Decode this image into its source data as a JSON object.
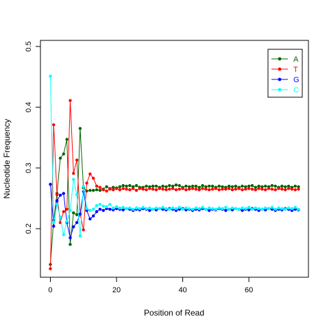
{
  "chart_data": {
    "type": "line",
    "title": "",
    "xlabel": "Position of Read",
    "ylabel": "Nucleotide Frequency",
    "xlim": [
      -3,
      78
    ],
    "ylim": [
      0.12,
      0.51
    ],
    "xticks": [
      0,
      20,
      40,
      60
    ],
    "yticks": [
      0.2,
      0.3,
      0.4,
      0.5
    ],
    "legend_position": "top-right",
    "grid": false,
    "x": [
      0,
      1,
      2,
      3,
      4,
      5,
      6,
      7,
      8,
      9,
      10,
      11,
      12,
      13,
      14,
      15,
      16,
      17,
      18,
      19,
      20,
      21,
      22,
      23,
      24,
      25,
      26,
      27,
      28,
      29,
      30,
      31,
      32,
      33,
      34,
      35,
      36,
      37,
      38,
      39,
      40,
      41,
      42,
      43,
      44,
      45,
      46,
      47,
      48,
      49,
      50,
      51,
      52,
      53,
      54,
      55,
      56,
      57,
      58,
      59,
      60,
      61,
      62,
      63,
      64,
      65,
      66,
      67,
      68,
      69,
      70,
      71,
      72,
      73,
      74,
      75
    ],
    "series": [
      {
        "name": "A",
        "color": "#006400",
        "values": [
          0.141,
          0.214,
          0.258,
          0.316,
          0.323,
          0.347,
          0.174,
          0.226,
          0.223,
          0.365,
          0.267,
          0.262,
          0.263,
          0.263,
          0.264,
          0.263,
          0.265,
          0.269,
          0.266,
          0.268,
          0.267,
          0.269,
          0.271,
          0.27,
          0.271,
          0.269,
          0.271,
          0.268,
          0.268,
          0.27,
          0.269,
          0.27,
          0.27,
          0.268,
          0.27,
          0.269,
          0.271,
          0.27,
          0.272,
          0.271,
          0.268,
          0.27,
          0.269,
          0.27,
          0.27,
          0.268,
          0.271,
          0.269,
          0.27,
          0.27,
          0.268,
          0.27,
          0.269,
          0.268,
          0.27,
          0.269,
          0.27,
          0.268,
          0.27,
          0.269,
          0.27,
          0.271,
          0.268,
          0.27,
          0.269,
          0.27,
          0.269,
          0.271,
          0.27,
          0.268,
          0.27,
          0.269,
          0.27,
          0.268,
          0.27,
          0.269
        ]
      },
      {
        "name": "T",
        "color": "#ff0000",
        "values": [
          0.134,
          0.371,
          0.256,
          0.21,
          0.228,
          0.232,
          0.411,
          0.291,
          0.313,
          0.224,
          0.198,
          0.275,
          0.29,
          0.283,
          0.27,
          0.268,
          0.264,
          0.262,
          0.265,
          0.264,
          0.266,
          0.264,
          0.266,
          0.265,
          0.264,
          0.266,
          0.263,
          0.266,
          0.265,
          0.264,
          0.266,
          0.265,
          0.264,
          0.266,
          0.265,
          0.264,
          0.265,
          0.266,
          0.264,
          0.265,
          0.266,
          0.264,
          0.265,
          0.266,
          0.265,
          0.264,
          0.266,
          0.265,
          0.264,
          0.265,
          0.266,
          0.264,
          0.265,
          0.265,
          0.266,
          0.264,
          0.265,
          0.266,
          0.264,
          0.265,
          0.266,
          0.265,
          0.264,
          0.266,
          0.265,
          0.264,
          0.266,
          0.265,
          0.264,
          0.266,
          0.265,
          0.264,
          0.266,
          0.265,
          0.264,
          0.265
        ]
      },
      {
        "name": "G",
        "color": "#0000ff",
        "values": [
          0.273,
          0.204,
          0.246,
          0.255,
          0.258,
          0.21,
          0.185,
          0.203,
          0.21,
          0.224,
          0.261,
          0.23,
          0.216,
          0.221,
          0.228,
          0.232,
          0.23,
          0.233,
          0.232,
          0.231,
          0.233,
          0.232,
          0.231,
          0.233,
          0.232,
          0.23,
          0.232,
          0.231,
          0.233,
          0.232,
          0.23,
          0.232,
          0.231,
          0.233,
          0.232,
          0.231,
          0.233,
          0.232,
          0.23,
          0.232,
          0.233,
          0.231,
          0.232,
          0.23,
          0.232,
          0.231,
          0.233,
          0.232,
          0.23,
          0.232,
          0.231,
          0.233,
          0.232,
          0.23,
          0.232,
          0.231,
          0.233,
          0.232,
          0.23,
          0.232,
          0.231,
          0.233,
          0.232,
          0.23,
          0.232,
          0.231,
          0.233,
          0.232,
          0.23,
          0.232,
          0.231,
          0.233,
          0.232,
          0.23,
          0.232,
          0.231
        ]
      },
      {
        "name": "C",
        "color": "#00ffff",
        "values": [
          0.451,
          0.21,
          0.24,
          0.219,
          0.19,
          0.212,
          0.23,
          0.281,
          0.256,
          0.188,
          0.27,
          0.233,
          0.23,
          0.232,
          0.238,
          0.24,
          0.237,
          0.236,
          0.24,
          0.234,
          0.236,
          0.234,
          0.235,
          0.233,
          0.234,
          0.232,
          0.234,
          0.233,
          0.235,
          0.233,
          0.234,
          0.232,
          0.234,
          0.233,
          0.235,
          0.233,
          0.232,
          0.234,
          0.233,
          0.235,
          0.232,
          0.234,
          0.233,
          0.232,
          0.234,
          0.233,
          0.235,
          0.232,
          0.234,
          0.233,
          0.232,
          0.234,
          0.233,
          0.235,
          0.232,
          0.234,
          0.233,
          0.232,
          0.234,
          0.233,
          0.235,
          0.232,
          0.234,
          0.233,
          0.232,
          0.234,
          0.233,
          0.235,
          0.232,
          0.234,
          0.233,
          0.232,
          0.234,
          0.233,
          0.235,
          0.232
        ]
      }
    ]
  }
}
